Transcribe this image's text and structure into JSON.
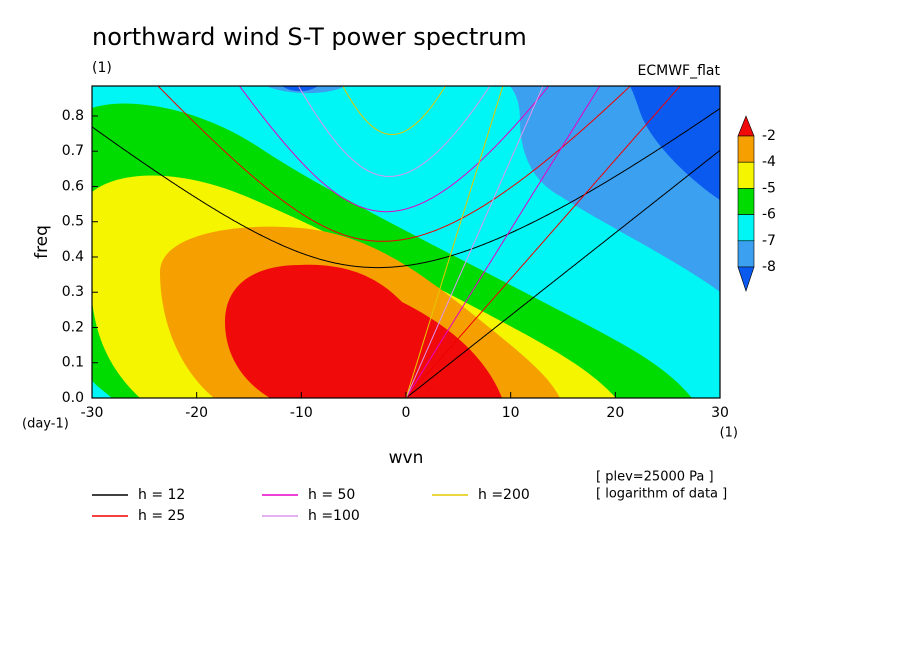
{
  "chart_data": {
    "type": "contour",
    "title": "northward wind S-T power spectrum",
    "subtitle": "(1)",
    "model": "ECMWF_flat",
    "ylabel": "freq",
    "xlabel": "wvn",
    "y_unit": "(day-1)",
    "x_unit": "(1)",
    "notes": [
      "[ plev=25000 Pa ]",
      "[ logarithm of data ]"
    ],
    "xlim": [
      -30,
      30
    ],
    "xticks": [
      -30,
      -20,
      -10,
      0,
      10,
      20,
      30
    ],
    "ylim": [
      0,
      0.885
    ],
    "yticks": [
      {
        "value": 0,
        "label": "0.0"
      },
      0.1,
      0.2,
      0.3,
      0.4,
      0.5,
      0.6,
      0.7,
      0.8
    ],
    "colorbar": {
      "levels": [
        -2,
        -4,
        -5,
        -6,
        -7,
        -8
      ],
      "colors": [
        "#f00a0a",
        "#f5a000",
        "#f5f500",
        "#00dc00",
        "#00f5f5",
        "#3ca0f0",
        "#0a5af0"
      ]
    },
    "series": [
      {
        "name": "h = 12",
        "color": "#000000",
        "depth": 12
      },
      {
        "name": "h = 25",
        "color": "#f00000",
        "depth": 25
      },
      {
        "name": "h = 50",
        "color": "#e600c8",
        "depth": 50
      },
      {
        "name": "h =100",
        "color": "#dc96f0",
        "depth": 100
      },
      {
        "name": "h =200",
        "color": "#e6c800",
        "depth": 200
      }
    ]
  }
}
